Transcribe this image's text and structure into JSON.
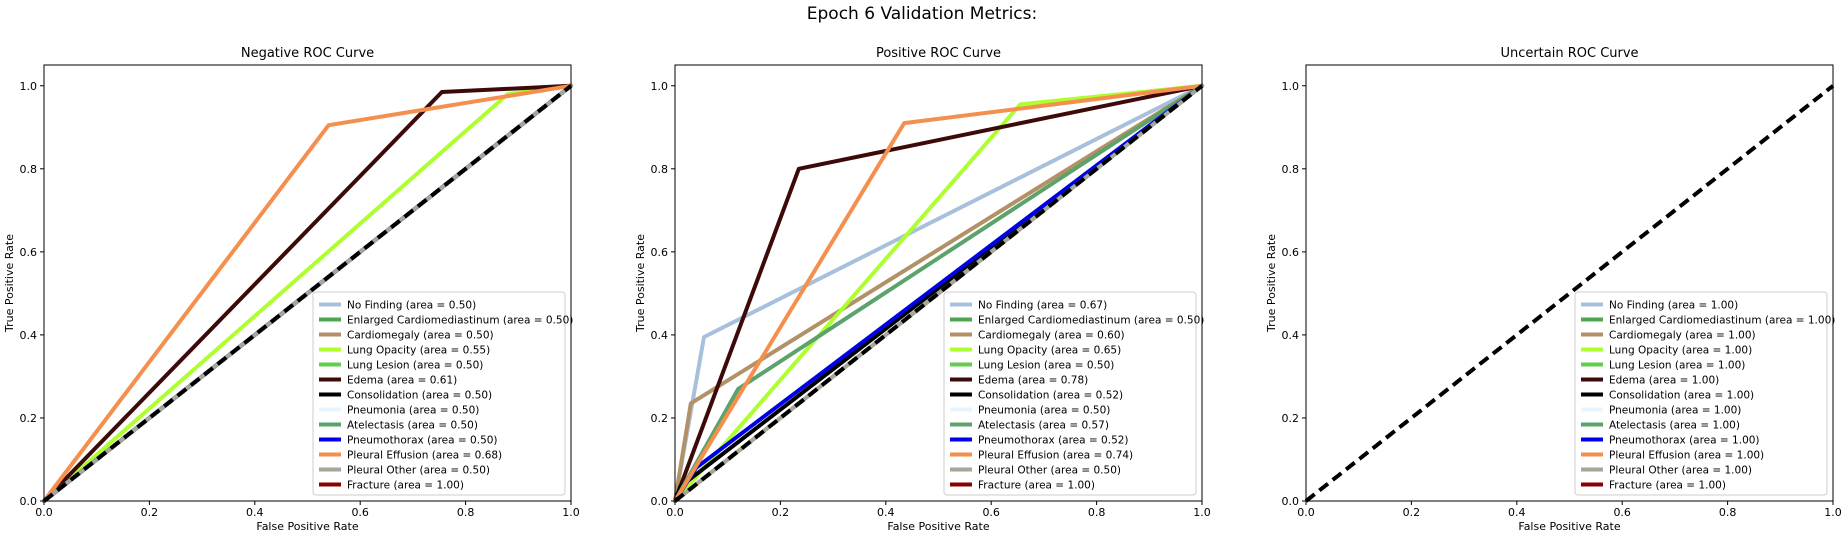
{
  "figure": {
    "title": "Epoch 6 Validation Metrics:"
  },
  "chart_data": [
    {
      "type": "line",
      "title": "Negative ROC Curve",
      "xlabel": "False Positive Rate",
      "ylabel": "True Positive Rate",
      "xlim": [
        0,
        1
      ],
      "ylim": [
        0,
        1.05
      ],
      "xticks": [
        "0.0",
        "0.2",
        "0.4",
        "0.6",
        "0.8",
        "1.0"
      ],
      "yticks": [
        "0.0",
        "0.2",
        "0.4",
        "0.6",
        "0.8",
        "1.0"
      ],
      "legend_position": "lower right",
      "diagonal": {
        "style": "dashed",
        "color": "#000000"
      },
      "series": [
        {
          "name": "No Finding (area = 0.50)",
          "color": "#a7c0dc",
          "points": [
            [
              0,
              0
            ],
            [
              1,
              1
            ]
          ]
        },
        {
          "name": "Enlarged Cardiomediastinum (area = 0.50)",
          "color": "#4da64d",
          "points": [
            [
              0,
              0
            ],
            [
              1,
              1
            ]
          ]
        },
        {
          "name": "Cardiomegaly (area = 0.50)",
          "color": "#b39166",
          "points": [
            [
              0,
              0
            ],
            [
              1,
              1
            ]
          ]
        },
        {
          "name": "Lung Opacity (area = 0.55)",
          "color": "#adff2f",
          "points": [
            [
              0,
              0
            ],
            [
              0.88,
              0.98
            ],
            [
              1,
              1
            ]
          ]
        },
        {
          "name": "Lung Lesion (area = 0.50)",
          "color": "#66cc4d",
          "points": [
            [
              0,
              0
            ],
            [
              1,
              1
            ]
          ]
        },
        {
          "name": "Edema (area = 0.61)",
          "color": "#3d0a0a",
          "points": [
            [
              0,
              0
            ],
            [
              0.755,
              0.985
            ],
            [
              1,
              1
            ]
          ]
        },
        {
          "name": "Consolidation (area = 0.50)",
          "color": "#000000",
          "points": [
            [
              0,
              0
            ],
            [
              1,
              1
            ]
          ]
        },
        {
          "name": "Pneumonia (area = 0.50)",
          "color": "#e6f5ff",
          "points": [
            [
              0,
              0
            ],
            [
              1,
              1
            ]
          ]
        },
        {
          "name": "Atelectasis (area = 0.50)",
          "color": "#5ca36b",
          "points": [
            [
              0,
              0
            ],
            [
              1,
              1
            ]
          ]
        },
        {
          "name": "Pneumothorax (area = 0.50)",
          "color": "#0000e6",
          "points": [
            [
              0,
              0
            ],
            [
              1,
              1
            ]
          ]
        },
        {
          "name": "Pleural Effusion (area = 0.68)",
          "color": "#f58f4d",
          "points": [
            [
              0,
              0
            ],
            [
              0.54,
              0.905
            ],
            [
              1,
              1
            ]
          ]
        },
        {
          "name": "Pleural Other (area = 0.50)",
          "color": "#a6a699",
          "points": [
            [
              0,
              0
            ],
            [
              1,
              1
            ]
          ]
        },
        {
          "name": "Fracture (area = 1.00)",
          "color": "#8b0000",
          "points": []
        }
      ]
    },
    {
      "type": "line",
      "title": "Positive ROC Curve",
      "xlabel": "False Positive Rate",
      "ylabel": "True Positive Rate",
      "xlim": [
        0,
        1
      ],
      "ylim": [
        0,
        1.05
      ],
      "xticks": [
        "0.0",
        "0.2",
        "0.4",
        "0.6",
        "0.8",
        "1.0"
      ],
      "yticks": [
        "0.0",
        "0.2",
        "0.4",
        "0.6",
        "0.8",
        "1.0"
      ],
      "legend_position": "lower right",
      "diagonal": {
        "style": "dashed",
        "color": "#000000"
      },
      "series": [
        {
          "name": "No Finding (area = 0.67)",
          "color": "#a7c0dc",
          "points": [
            [
              0,
              0
            ],
            [
              0.055,
              0.395
            ],
            [
              1,
              1
            ]
          ]
        },
        {
          "name": "Enlarged Cardiomediastinum (area = 0.50)",
          "color": "#4da64d",
          "points": [
            [
              0,
              0
            ],
            [
              1,
              1
            ]
          ]
        },
        {
          "name": "Cardiomegaly (area = 0.60)",
          "color": "#b39166",
          "points": [
            [
              0,
              0
            ],
            [
              0.03,
              0.235
            ],
            [
              1,
              1
            ]
          ]
        },
        {
          "name": "Lung Opacity (area = 0.65)",
          "color": "#adff2f",
          "points": [
            [
              0,
              0
            ],
            [
              0.655,
              0.955
            ],
            [
              1,
              1
            ]
          ]
        },
        {
          "name": "Lung Lesion (area = 0.50)",
          "color": "#66cc4d",
          "points": [
            [
              0,
              0
            ],
            [
              1,
              1
            ]
          ]
        },
        {
          "name": "Edema (area = 0.78)",
          "color": "#3d0a0a",
          "points": [
            [
              0,
              0
            ],
            [
              0.235,
              0.8
            ],
            [
              1,
              1
            ]
          ]
        },
        {
          "name": "Consolidation (area = 0.52)",
          "color": "#000000",
          "points": [
            [
              0,
              0
            ],
            [
              0.01,
              0.035
            ],
            [
              1,
              1
            ]
          ]
        },
        {
          "name": "Pneumonia (area = 0.50)",
          "color": "#e6f5ff",
          "points": [
            [
              0,
              0
            ],
            [
              1,
              1
            ]
          ]
        },
        {
          "name": "Atelectasis (area = 0.57)",
          "color": "#5ca36b",
          "points": [
            [
              0,
              0
            ],
            [
              0.12,
              0.27
            ],
            [
              1,
              1
            ]
          ]
        },
        {
          "name": "Pneumothorax (area = 0.52)",
          "color": "#0000e6",
          "points": [
            [
              0,
              0
            ],
            [
              0.04,
              0.08
            ],
            [
              1,
              1
            ]
          ]
        },
        {
          "name": "Pleural Effusion (area = 0.74)",
          "color": "#f58f4d",
          "points": [
            [
              0,
              0
            ],
            [
              0.435,
              0.91
            ],
            [
              1,
              1
            ]
          ]
        },
        {
          "name": "Pleural Other (area = 0.50)",
          "color": "#a6a699",
          "points": [
            [
              0,
              0
            ],
            [
              1,
              1
            ]
          ]
        },
        {
          "name": "Fracture (area = 1.00)",
          "color": "#8b0000",
          "points": []
        }
      ]
    },
    {
      "type": "line",
      "title": "Uncertain ROC Curve",
      "xlabel": "False Positive Rate",
      "ylabel": "True Positive Rate",
      "xlim": [
        0,
        1
      ],
      "ylim": [
        0,
        1.05
      ],
      "xticks": [
        "0.0",
        "0.2",
        "0.4",
        "0.6",
        "0.8",
        "1.0"
      ],
      "yticks": [
        "0.0",
        "0.2",
        "0.4",
        "0.6",
        "0.8",
        "1.0"
      ],
      "legend_position": "lower right",
      "diagonal": {
        "style": "dashed",
        "color": "#000000"
      },
      "series": [
        {
          "name": "No Finding (area = 1.00)",
          "color": "#a7c0dc",
          "points": []
        },
        {
          "name": "Enlarged Cardiomediastinum (area = 1.00)",
          "color": "#4da64d",
          "points": []
        },
        {
          "name": "Cardiomegaly (area = 1.00)",
          "color": "#b39166",
          "points": []
        },
        {
          "name": "Lung Opacity (area = 1.00)",
          "color": "#adff2f",
          "points": []
        },
        {
          "name": "Lung Lesion (area = 1.00)",
          "color": "#66cc4d",
          "points": []
        },
        {
          "name": "Edema (area = 1.00)",
          "color": "#3d0a0a",
          "points": []
        },
        {
          "name": "Consolidation (area = 1.00)",
          "color": "#000000",
          "points": []
        },
        {
          "name": "Pneumonia (area = 1.00)",
          "color": "#e6f5ff",
          "points": []
        },
        {
          "name": "Atelectasis (area = 1.00)",
          "color": "#5ca36b",
          "points": []
        },
        {
          "name": "Pneumothorax (area = 1.00)",
          "color": "#0000e6",
          "points": []
        },
        {
          "name": "Pleural Effusion (area = 1.00)",
          "color": "#f58f4d",
          "points": []
        },
        {
          "name": "Pleural Other (area = 1.00)",
          "color": "#a6a699",
          "points": []
        },
        {
          "name": "Fracture (area = 1.00)",
          "color": "#8b0000",
          "points": []
        }
      ]
    }
  ]
}
